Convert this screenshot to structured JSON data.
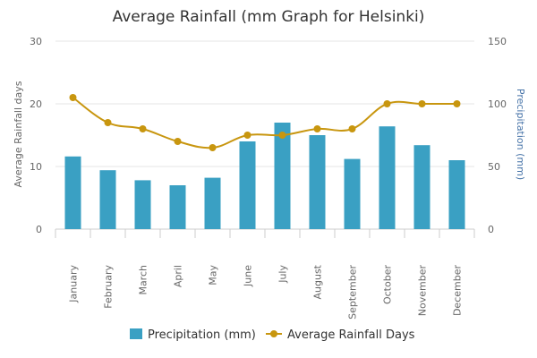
{
  "chart_data": {
    "type": "bar",
    "title": "Average Rainfall (mm Graph for Helsinki)",
    "categories": [
      "January",
      "February",
      "March",
      "April",
      "May",
      "June",
      "July",
      "August",
      "September",
      "October",
      "November",
      "December"
    ],
    "series": [
      {
        "name": "Precipitation (mm)",
        "type": "bar",
        "axis": "right",
        "color": "#3aa0c3",
        "values": [
          58,
          47,
          39,
          35,
          41,
          70,
          85,
          75,
          56,
          82,
          67,
          55
        ]
      },
      {
        "name": "Average Rainfall Days",
        "type": "line",
        "axis": "left",
        "color": "#c8960f",
        "values": [
          21,
          17,
          16,
          14,
          13,
          15,
          15,
          16,
          16,
          20,
          20,
          20
        ]
      }
    ],
    "y_left": {
      "label": "Average Rainfall days",
      "range": [
        0,
        30
      ],
      "ticks": [
        "0",
        "10",
        "20",
        "30"
      ],
      "tick_values": [
        0,
        10,
        20,
        30
      ]
    },
    "y_right": {
      "label": "Precipitation (mm)",
      "range": [
        0,
        150
      ],
      "ticks": [
        "0",
        "50",
        "100",
        "150"
      ],
      "tick_values": [
        0,
        50,
        100,
        150
      ],
      "color": "#4572a7"
    },
    "grid": true,
    "legend": "bottom-center"
  }
}
